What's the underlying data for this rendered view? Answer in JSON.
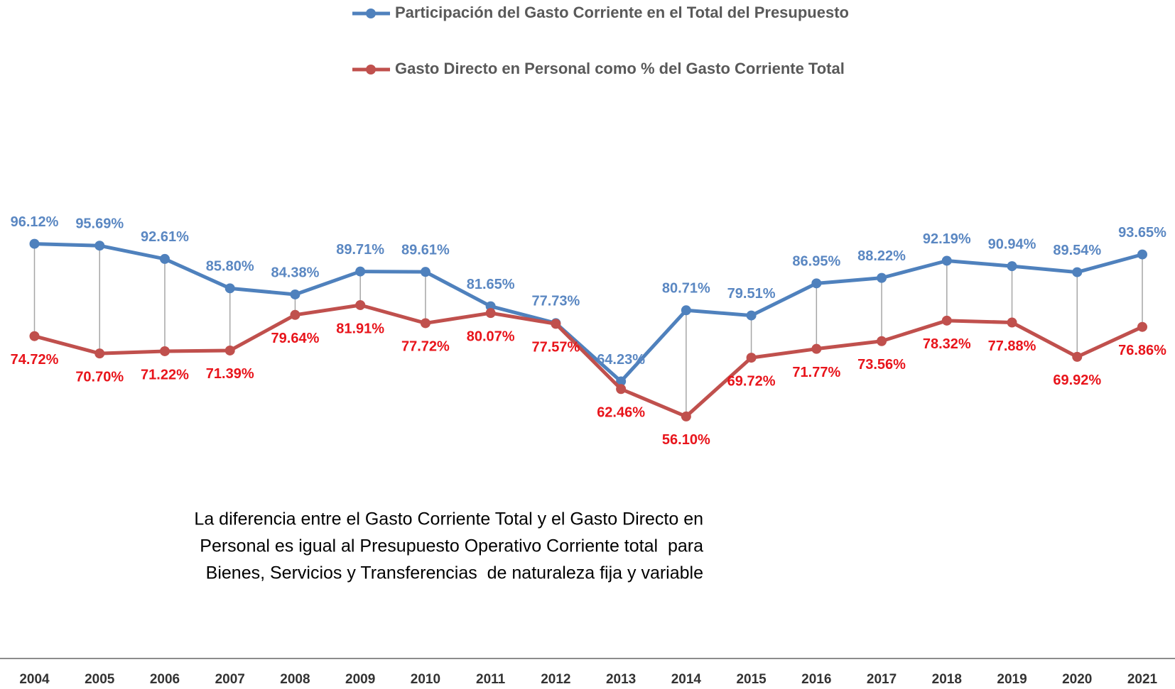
{
  "chart_data": {
    "type": "line",
    "categories": [
      "2004",
      "2005",
      "2006",
      "2007",
      "2008",
      "2009",
      "2010",
      "2011",
      "2012",
      "2013",
      "2014",
      "2015",
      "2016",
      "2017",
      "2018",
      "2019",
      "2020",
      "2021"
    ],
    "series": [
      {
        "name": "Participación del Gasto Corriente en el Total del Presupuesto",
        "color": "#4f81bd",
        "label_color": "#5a87c2",
        "values": [
          96.12,
          95.69,
          92.61,
          85.8,
          84.38,
          89.71,
          89.61,
          81.65,
          77.73,
          64.23,
          80.71,
          79.51,
          86.95,
          88.22,
          92.19,
          90.94,
          89.54,
          93.65
        ],
        "value_labels": [
          "96.12%",
          "95.69%",
          "92.61%",
          "85.80%",
          "84.38%",
          "89.71%",
          "89.61%",
          "81.65%",
          "77.73%",
          "64.23%",
          "80.71%",
          "79.51%",
          "86.95%",
          "88.22%",
          "92.19%",
          "90.94%",
          "89.54%",
          "93.65%"
        ]
      },
      {
        "name": "Gasto Directo en Personal como % del Gasto Corriente Total",
        "color": "#c0504d",
        "label_color": "#e8141b",
        "values": [
          74.72,
          70.7,
          71.22,
          71.39,
          79.64,
          81.91,
          77.72,
          80.07,
          77.57,
          62.46,
          56.1,
          69.72,
          71.77,
          73.56,
          78.32,
          77.88,
          69.92,
          76.86
        ],
        "value_labels": [
          "74.72%",
          "70.70%",
          "71.22%",
          "71.39%",
          "79.64%",
          "81.91%",
          "77.72%",
          "80.07%",
          "77.57%",
          "62.46%",
          "56.10%",
          "69.72%",
          "71.77%",
          "73.56%",
          "78.32%",
          "77.88%",
          "69.92%",
          "76.86%"
        ]
      }
    ],
    "ylim": [
      0,
      100
    ],
    "legend": "top",
    "drop_lines": true,
    "annotation": [
      "La diferencia entre el Gasto Corriente Total y el Gasto Directo en",
      "Personal es igual al Presupuesto Operativo Corriente total  para",
      "Bienes, Servicios y Transferencias  de naturaleza fija y variable"
    ]
  }
}
